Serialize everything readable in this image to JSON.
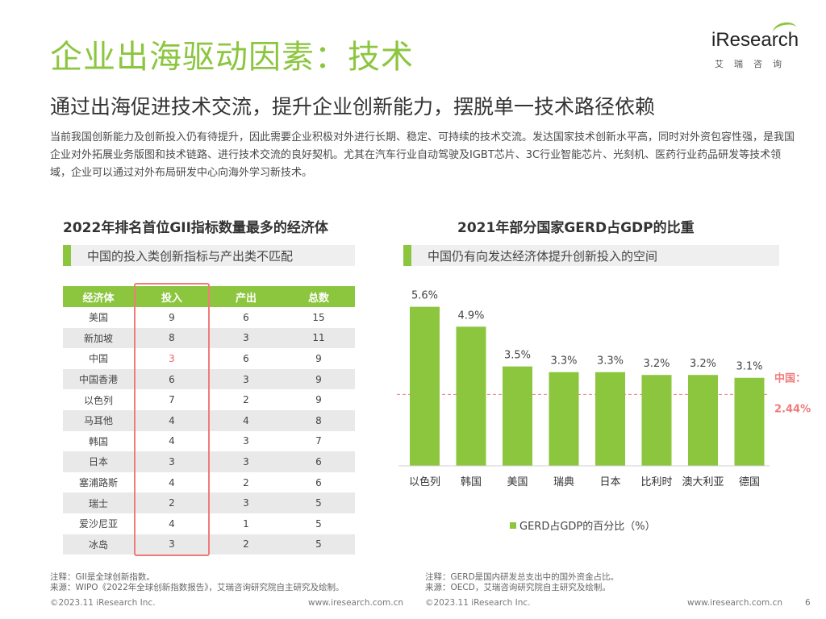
{
  "header": {
    "title": "企业出海驱动因素：技术",
    "subtitle": "通过出海促进技术交流，提升企业创新能力，摆脱单一技术路径依赖",
    "body": "当前我国创新能力及创新投入仍有待提升，因此需要企业积极对外进行长期、稳定、可持续的技术交流。发达国家技术创新水平高，同时对外资包容性强，是我国企业对外拓展业务版图和技术链路、进行技术交流的良好契机。尤其在汽车行业自动驾驶及IGBT芯片、3C行业智能芯片、光刻机、医药行业药品研发等技术领域，企业可以通过对外布局研发中心向海外学习新技术。"
  },
  "logo": {
    "word": "iResearch",
    "sub": "艾瑞咨询",
    "colors": {
      "accent": "#8cc63f"
    }
  },
  "left_panel": {
    "title": "2022年排名首位GII指标数量最多的经济体",
    "tag": "中国的投入类创新指标与产出类不匹配",
    "table": {
      "headers": [
        "经济体",
        "投入",
        "产出",
        "总数"
      ],
      "rows": [
        [
          "美国",
          "9",
          "6",
          "15"
        ],
        [
          "新加坡",
          "8",
          "3",
          "11"
        ],
        [
          "中国",
          "3",
          "6",
          "9"
        ],
        [
          "中国香港",
          "6",
          "3",
          "9"
        ],
        [
          "以色列",
          "7",
          "2",
          "9"
        ],
        [
          "马耳他",
          "4",
          "4",
          "8"
        ],
        [
          "韩国",
          "4",
          "3",
          "7"
        ],
        [
          "日本",
          "3",
          "3",
          "6"
        ],
        [
          "塞浦路斯",
          "4",
          "2",
          "6"
        ],
        [
          "瑞士",
          "2",
          "3",
          "5"
        ],
        [
          "爱沙尼亚",
          "4",
          "1",
          "5"
        ],
        [
          "冰岛",
          "3",
          "2",
          "5"
        ]
      ]
    },
    "note": "注释：GII是全球创新指数。",
    "source": "来源：WIPO《2022年全球创新指数报告》，艾瑞咨询研究院自主研究及绘制。"
  },
  "right_panel": {
    "title": "2021年部分国家GERD占GDP的比重",
    "tag": "中国仍有向发达经济体提升创新投入的空间",
    "note": "注释：GERD是国内研发总支出中的国外资金占比。",
    "source": "来源：OECD，艾瑞咨询研究院自主研究及绘制。"
  },
  "chart_data": {
    "type": "bar",
    "categories": [
      "以色列",
      "韩国",
      "美国",
      "瑞典",
      "日本",
      "比利时",
      "澳大利亚",
      "德国"
    ],
    "series": [
      {
        "name": "GERD占GDP的百分比（%）",
        "values": [
          5.6,
          4.9,
          3.5,
          3.3,
          3.3,
          3.2,
          3.2,
          3.1
        ],
        "labels": [
          "5.6%",
          "4.9%",
          "3.5%",
          "3.3%",
          "3.3%",
          "3.2%",
          "3.2%",
          "3.1%"
        ]
      }
    ],
    "ylim": [
      0,
      6
    ],
    "reference_line": {
      "value": 2.44,
      "label": "中国：",
      "value_label": "2.44%"
    },
    "colors": {
      "bar": "#8cc63f",
      "reference": "#f07b7b"
    },
    "legend": "bottom"
  },
  "footer": {
    "copyright": "©2023.11 iResearch Inc.",
    "site": "www.iresearch.com.cn",
    "page": "6"
  }
}
